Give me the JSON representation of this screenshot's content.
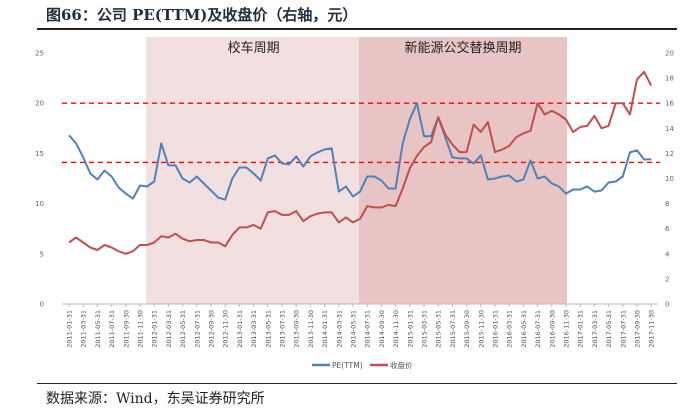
{
  "title": "图66：公司 PE(TTM)及收盘价（右轴，元）",
  "source": "数据来源：Wind，东吴证券研究所",
  "chart_data": {
    "type": "line",
    "title": "图66：公司 PE(TTM)及收盘价（右轴，元）",
    "left_axis": {
      "range": [
        0,
        25
      ],
      "ticks": [
        0,
        5,
        10,
        15,
        20,
        25
      ]
    },
    "right_axis": {
      "range": [
        0,
        20
      ],
      "ticks": [
        0,
        2,
        4,
        6,
        8,
        10,
        12,
        14,
        16,
        18,
        20
      ]
    },
    "x_start": "2011-01",
    "x_tick_labels": [
      "2011-01-31",
      "2011-03-31",
      "2011-05-31",
      "2011-07-31",
      "2011-09-30",
      "2011-11-30",
      "2012-01-31",
      "2012-03-31",
      "2012-05-31",
      "2012-07-31",
      "2012-09-30",
      "2012-11-30",
      "2013-01-31",
      "2013-03-31",
      "2013-05-31",
      "2013-07-31",
      "2013-09-30",
      "2013-11-30",
      "2014-01-31",
      "2014-03-31",
      "2014-05-31",
      "2014-07-31",
      "2014-09-30",
      "2014-11-30",
      "2015-01-31",
      "2015-03-31",
      "2015-05-31",
      "2015-07-31",
      "2015-09-30",
      "2015-11-30",
      "2016-01-31",
      "2016-03-31",
      "2016-05-31",
      "2016-07-31",
      "2016-09-30",
      "2016-11-30",
      "2017-01-31",
      "2017-03-31",
      "2017-05-31",
      "2017-07-31",
      "2017-09-30",
      "2017-11-30"
    ],
    "series": [
      {
        "name": "PE(TTM)",
        "axis": "left",
        "color": "#4f81bd",
        "values": [
          16.8,
          16.0,
          14.6,
          13.0,
          12.4,
          13.3,
          12.7,
          11.6,
          11.0,
          10.5,
          11.8,
          11.7,
          12.2,
          16.0,
          13.8,
          13.8,
          12.5,
          12.1,
          12.7,
          12.0,
          11.3,
          10.6,
          10.4,
          12.5,
          13.6,
          13.6,
          13.0,
          12.3,
          14.5,
          14.8,
          14.0,
          13.9,
          14.7,
          13.7,
          14.7,
          15.1,
          15.4,
          15.5,
          11.2,
          11.7,
          10.7,
          11.2,
          12.7,
          12.7,
          12.3,
          11.5,
          11.5,
          16.0,
          18.4,
          20.0,
          16.7,
          16.7,
          18.6,
          16.6,
          14.6,
          14.5,
          14.5,
          14.0,
          14.8,
          12.4,
          12.5,
          12.7,
          12.8,
          12.2,
          12.4,
          14.3,
          12.5,
          12.7,
          12.0,
          11.7,
          11.0,
          11.4,
          11.4,
          11.7,
          11.2,
          11.3,
          12.1,
          12.2,
          12.7,
          15.1,
          15.3,
          14.4,
          14.4
        ]
      },
      {
        "name": "收盘价",
        "axis": "right",
        "color": "#c0504d",
        "values": [
          4.9,
          5.3,
          4.9,
          4.5,
          4.3,
          4.7,
          4.5,
          4.2,
          4.0,
          4.2,
          4.7,
          4.7,
          4.9,
          5.4,
          5.3,
          5.6,
          5.2,
          5.0,
          5.1,
          5.1,
          4.9,
          4.9,
          4.6,
          5.5,
          6.1,
          6.1,
          6.3,
          6.0,
          7.3,
          7.4,
          7.1,
          7.1,
          7.4,
          6.6,
          7.0,
          7.2,
          7.3,
          7.3,
          6.5,
          6.9,
          6.5,
          6.8,
          7.8,
          7.7,
          7.7,
          7.9,
          7.8,
          9.2,
          10.8,
          11.8,
          12.5,
          12.9,
          14.9,
          13.5,
          12.7,
          12.1,
          12.1,
          14.3,
          13.7,
          14.5,
          12.1,
          12.3,
          12.6,
          13.3,
          13.6,
          13.8,
          16.0,
          15.1,
          15.4,
          15.1,
          14.7,
          13.7,
          14.1,
          14.2,
          15.0,
          14.0,
          14.2,
          16.0,
          16.0,
          15.1,
          17.9,
          18.5,
          17.4
        ]
      }
    ],
    "reference_lines": [
      {
        "axis": "left",
        "value": 20,
        "style": "dashed",
        "color": "#ff0000"
      },
      {
        "axis": "left",
        "value": 14.1,
        "style": "dashed",
        "color": "#ff0000"
      }
    ],
    "bands": [
      {
        "label": "校车周期",
        "from": "2011-12",
        "to": "2014-06",
        "color": "#f2dfdf"
      },
      {
        "label": "新能源公交替换周期",
        "from": "2014-06",
        "to": "2016-11",
        "color": "#e8c4c4"
      }
    ],
    "legend": "bottom-center",
    "grid": false
  }
}
